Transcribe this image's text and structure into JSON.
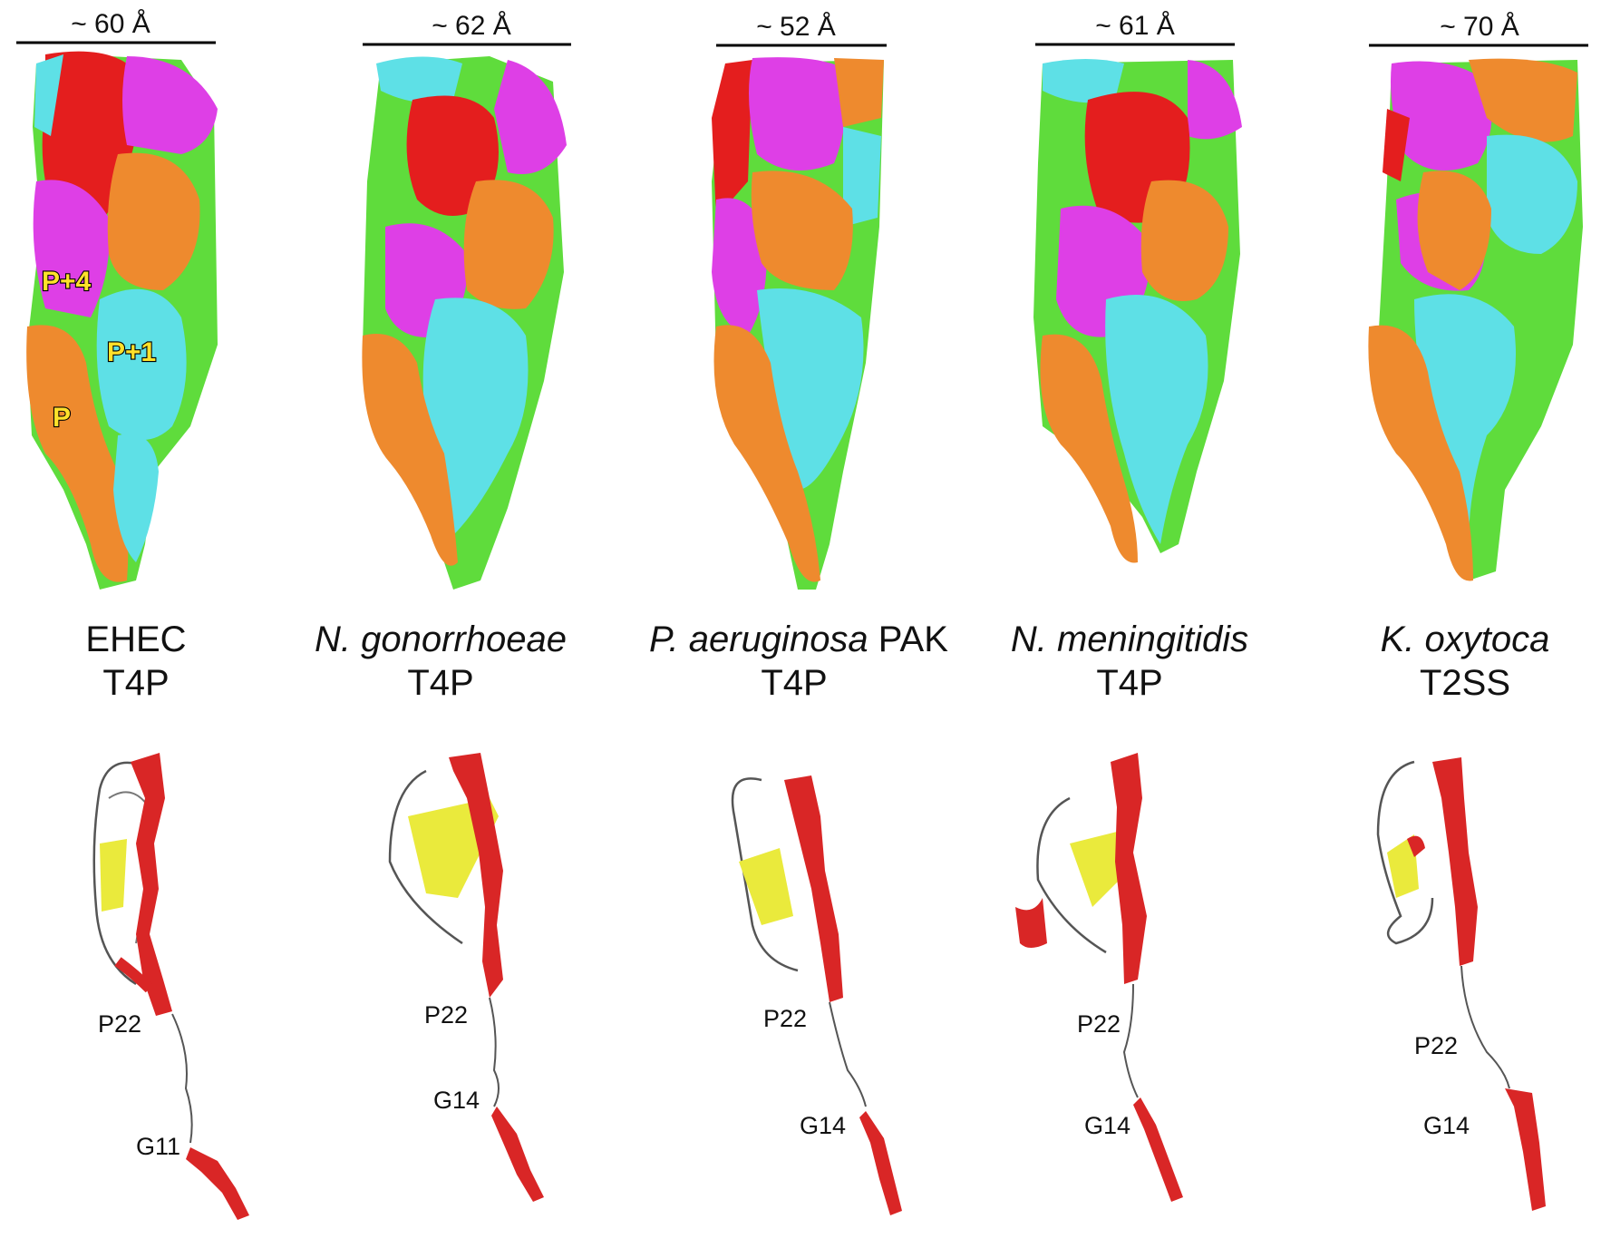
{
  "panels": [
    {
      "id": "ehec",
      "width_label": "~ 60 Å",
      "organism": "EHEC",
      "organism_italic": false,
      "organism_suffix": "",
      "system": "T4P",
      "subunit_labels": [
        "P+4",
        "P+1",
        "P"
      ],
      "residue_labels": [
        "P22",
        "G11"
      ]
    },
    {
      "id": "ngonorrhoeae",
      "width_label": "~ 62 Å",
      "organism": "N. gonorrhoeae",
      "organism_italic": true,
      "organism_suffix": "",
      "system": "T4P",
      "residue_labels": [
        "P22",
        "G14"
      ]
    },
    {
      "id": "paeruginosa",
      "width_label": "~ 52 Å",
      "organism": "P. aeruginosa",
      "organism_italic": true,
      "organism_suffix": " PAK",
      "system": "T4P",
      "residue_labels": [
        "P22",
        "G14"
      ]
    },
    {
      "id": "nmeningitidis",
      "width_label": "~ 61 Å",
      "organism": "N. meningitidis",
      "organism_italic": true,
      "organism_suffix": "",
      "system": "T4P",
      "residue_labels": [
        "P22",
        "G14"
      ]
    },
    {
      "id": "koxytoca",
      "width_label": "~ 70 Å",
      "organism": "K. oxytoca",
      "organism_italic": true,
      "organism_suffix": "",
      "system": "T2SS",
      "residue_labels": [
        "P22",
        "G14"
      ]
    }
  ],
  "colors": {
    "red": "#e41e1e",
    "magenta": "#de3fe6",
    "orange": "#ee8a2e",
    "cyan": "#5ee0e6",
    "green": "#5fdc3c",
    "helix": "#d92626",
    "sheet": "#eaea3c",
    "coil": "#555555",
    "label_fill": "#ffe12a"
  }
}
